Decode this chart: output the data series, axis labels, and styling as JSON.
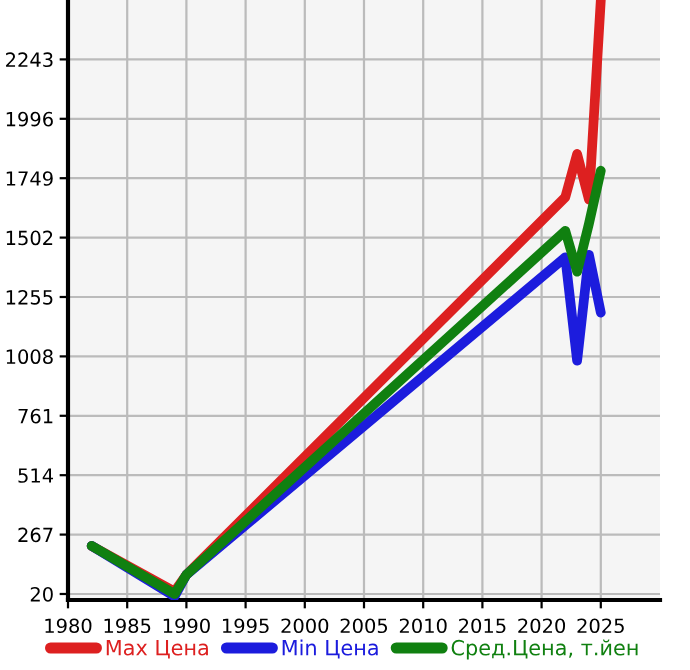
{
  "chart_data": {
    "type": "line",
    "x": [
      1982,
      1989,
      1990,
      2022,
      2023,
      2024,
      2025
    ],
    "series": [
      {
        "name": "Max Цена",
        "color": "#dd2020",
        "values": [
          220,
          30,
          100,
          1670,
          1850,
          1660,
          2490
        ]
      },
      {
        "name": "Min Цена",
        "color": "#1c1cdd",
        "values": [
          220,
          10,
          100,
          1420,
          990,
          1430,
          1190
        ]
      },
      {
        "name": "Сред.Цена, т.йен",
        "color": "#108010",
        "values": [
          220,
          20,
          100,
          1530,
          1360,
          1560,
          1780
        ]
      }
    ],
    "xlim": [
      1980,
      2030
    ],
    "xticks": [
      1980,
      1985,
      1990,
      1995,
      2000,
      2005,
      2010,
      2015,
      2020,
      2025
    ],
    "ylim": [
      -5,
      2490
    ],
    "yticks": [
      20,
      267,
      514,
      761,
      1008,
      1255,
      1502,
      1749,
      1996,
      2243
    ],
    "grid": true,
    "legend": "bottom",
    "marker": "none",
    "line_style": "solid"
  }
}
